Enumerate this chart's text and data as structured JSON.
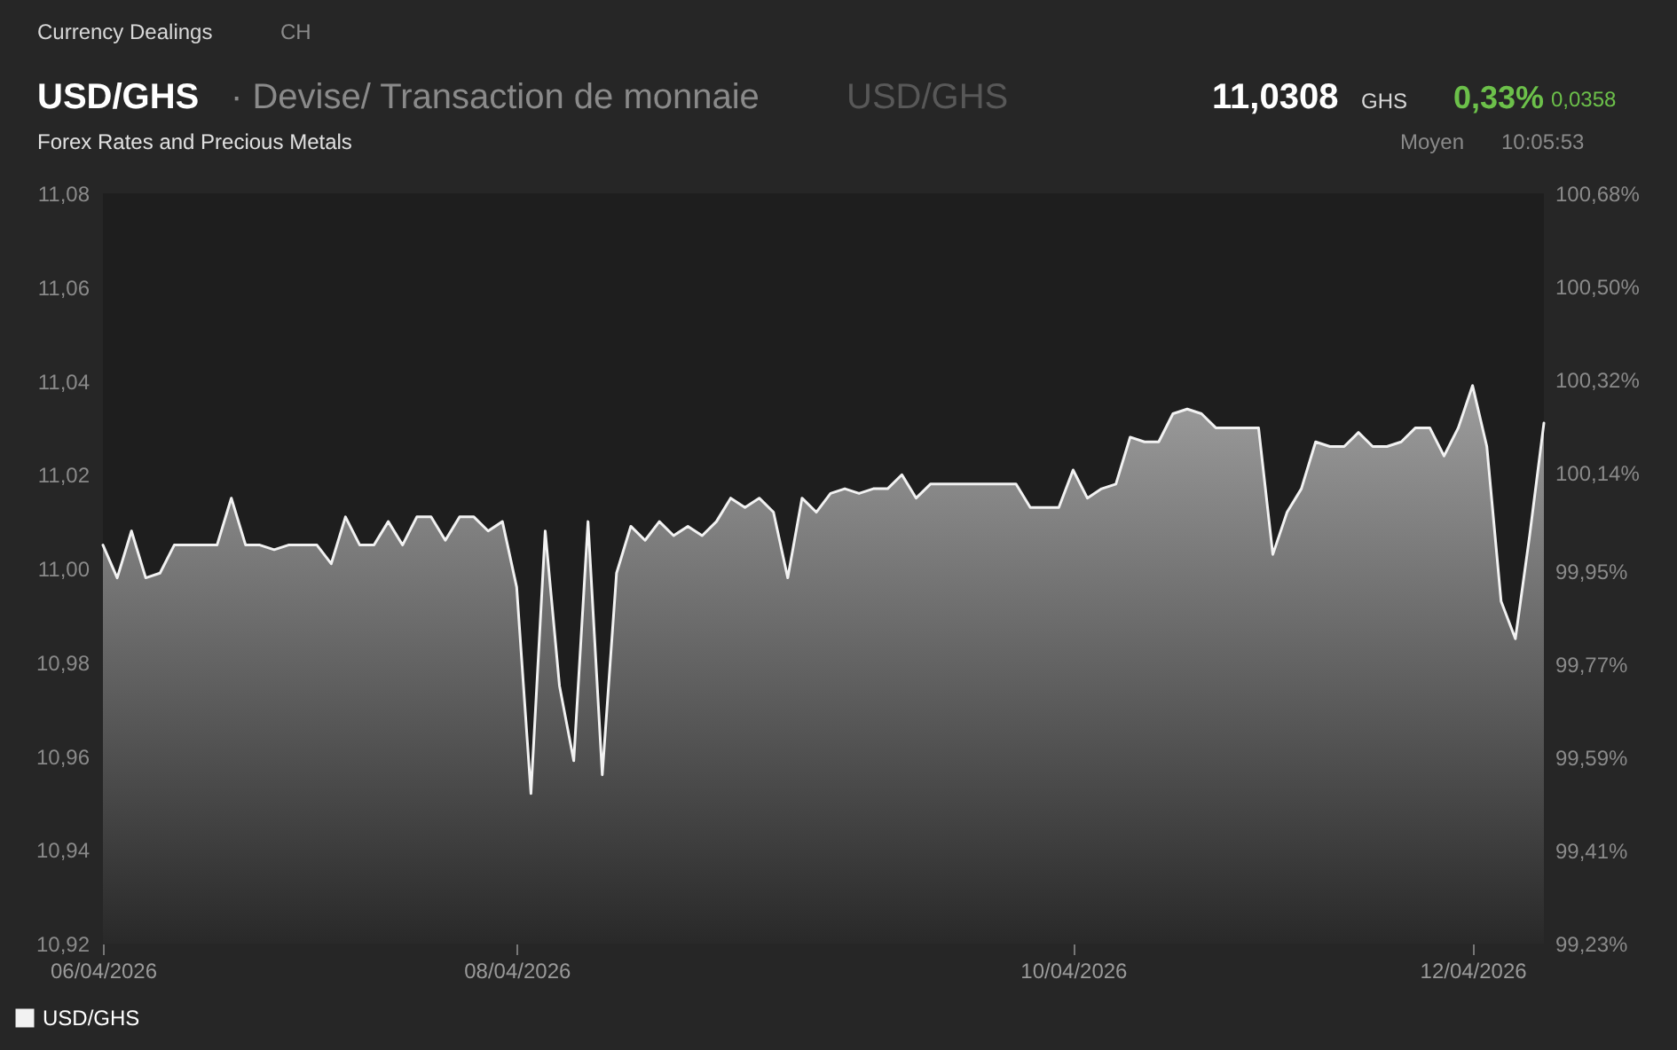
{
  "chart_data": {
    "type": "area",
    "title": "USD/GHS",
    "subtitle": "Forex Rates and Precious Metals",
    "annotations": [
      "Currency Dealings",
      "CH",
      "· Devise/ Transaction de monnaie",
      "USD/GHS",
      "11,0308",
      "GHS",
      "0,33%",
      "0,0358",
      "Moyen",
      "10:05:53"
    ],
    "categories": [
      "06/04/2026",
      null,
      null,
      null,
      null,
      null,
      null,
      null,
      null,
      null,
      null,
      null,
      null,
      null,
      null,
      null,
      null,
      null,
      null,
      null,
      null,
      null,
      null,
      null,
      null,
      null,
      null,
      null,
      null,
      "08/04/2026",
      null,
      null,
      null,
      null,
      null,
      null,
      null,
      null,
      null,
      null,
      null,
      null,
      null,
      null,
      null,
      null,
      null,
      null,
      null,
      null,
      null,
      null,
      null,
      null,
      null,
      null,
      null,
      null,
      null,
      null,
      null,
      null,
      null,
      null,
      null,
      null,
      null,
      null,
      "10/04/2026",
      null,
      null,
      null,
      null,
      null,
      null,
      null,
      null,
      null,
      null,
      null,
      null,
      null,
      null,
      null,
      null,
      null,
      null,
      null,
      null,
      null,
      null,
      null,
      null,
      null,
      null,
      null,
      "12/04/2026",
      null,
      null,
      null,
      null,
      null
    ],
    "series": [
      {
        "name": "USD/GHS",
        "color": "#f2f2f2",
        "values": [
          11.005,
          10.998,
          11.008,
          10.998,
          10.999,
          11.005,
          11.005,
          11.005,
          11.005,
          11.015,
          11.005,
          11.005,
          11.004,
          11.005,
          11.005,
          11.005,
          11.001,
          11.011,
          11.005,
          11.005,
          11.01,
          11.005,
          11.011,
          11.011,
          11.006,
          11.011,
          11.011,
          11.008,
          11.01,
          10.996,
          10.952,
          11.008,
          10.975,
          10.959,
          11.01,
          10.956,
          10.999,
          11.009,
          11.006,
          11.01,
          11.007,
          11.009,
          11.007,
          11.01,
          11.015,
          11.013,
          11.015,
          11.012,
          10.998,
          11.015,
          11.012,
          11.016,
          11.017,
          11.016,
          11.017,
          11.017,
          11.02,
          11.015,
          11.018,
          11.018,
          11.018,
          11.018,
          11.018,
          11.018,
          11.018,
          11.013,
          11.013,
          11.013,
          11.021,
          11.015,
          11.017,
          11.018,
          11.028,
          11.027,
          11.027,
          11.033,
          11.034,
          11.033,
          11.03,
          11.03,
          11.03,
          11.03,
          11.003,
          11.012,
          11.017,
          11.027,
          11.026,
          11.026,
          11.029,
          11.026,
          11.026,
          11.027,
          11.03,
          11.03,
          11.024,
          11.03,
          11.039,
          11.026,
          10.993,
          10.985,
          11.007,
          11.031
        ]
      }
    ],
    "ylim": [
      10.92,
      11.08
    ],
    "yticks": [
      {
        "value": 10.92,
        "label": "10,92"
      },
      {
        "value": 10.94,
        "label": "10,94"
      },
      {
        "value": 10.96,
        "label": "10,96"
      },
      {
        "value": 10.98,
        "label": "10,98"
      },
      {
        "value": 11.0,
        "label": "11,00"
      },
      {
        "value": 11.02,
        "label": "11,02"
      },
      {
        "value": 11.04,
        "label": "11,04"
      },
      {
        "value": 11.06,
        "label": "11,06"
      },
      {
        "value": 11.08,
        "label": "11,08"
      }
    ],
    "y2lim": [
      99.23,
      100.68
    ],
    "y2ticks": [
      {
        "value": 99.23,
        "label": "99,23%"
      },
      {
        "value": 99.41,
        "label": "99,41%"
      },
      {
        "value": 99.59,
        "label": "99,59%"
      },
      {
        "value": 99.77,
        "label": "99,77%"
      },
      {
        "value": 99.95,
        "label": "99,95%"
      },
      {
        "value": 100.14,
        "label": "100,14%"
      },
      {
        "value": 100.32,
        "label": "100,32%"
      },
      {
        "value": 100.5,
        "label": "100,50%"
      },
      {
        "value": 100.68,
        "label": "100,68%"
      }
    ],
    "grid": false,
    "legend": "bottom left"
  }
}
